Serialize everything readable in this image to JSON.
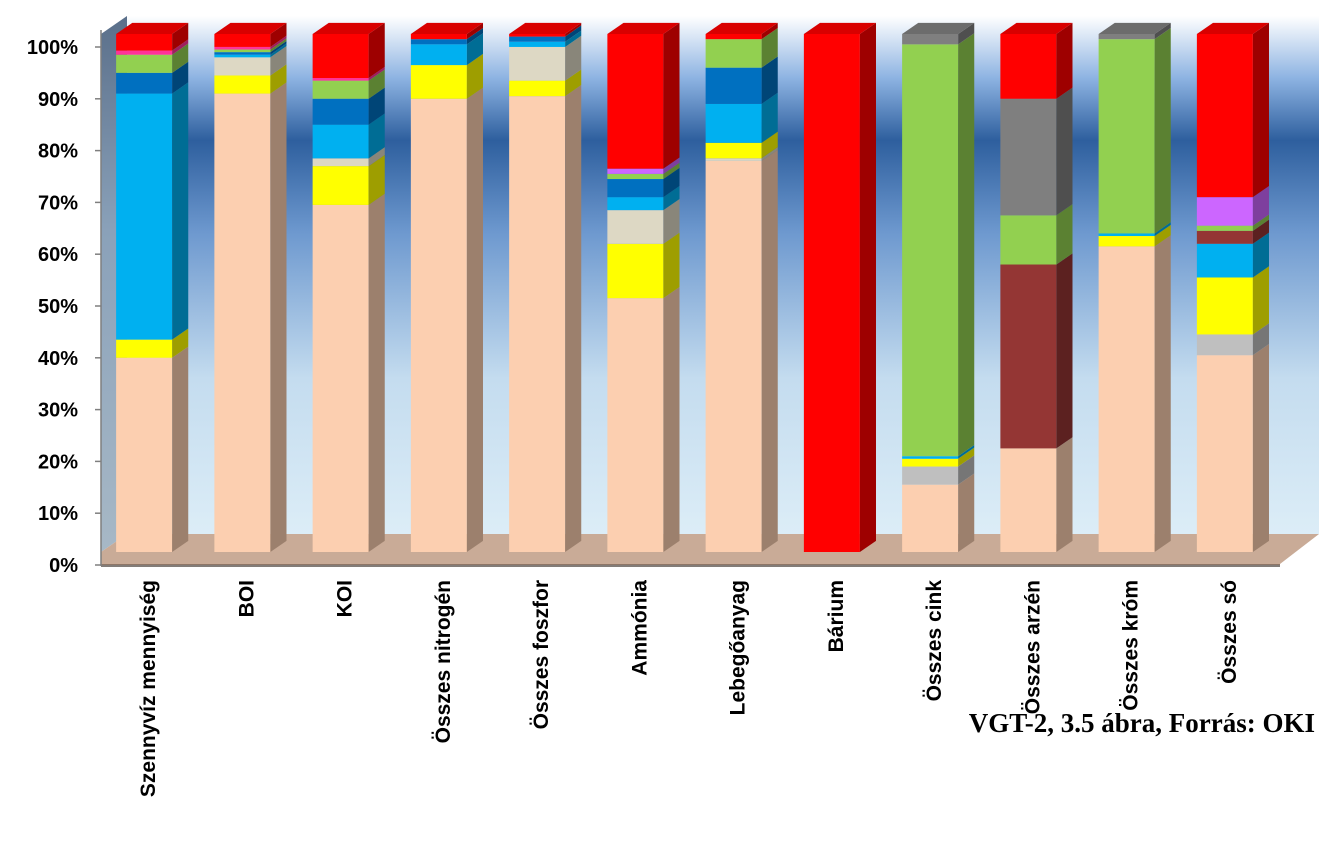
{
  "chart_data": {
    "type": "bar",
    "stacked": true,
    "normalized_percent": true,
    "three_d": true,
    "title": "",
    "xlabel": "",
    "ylabel": "",
    "ylim": [
      0,
      100
    ],
    "y_ticks": [
      "0%",
      "10%",
      "20%",
      "30%",
      "40%",
      "50%",
      "60%",
      "70%",
      "80%",
      "90%",
      "100%"
    ],
    "grid": false,
    "legend": "none",
    "categories": [
      "Szennyvíz mennyiség",
      "BOI",
      "KOI",
      "Összes nitrogén",
      "Összes foszfor",
      "Ammónia",
      "Lebegőanyag",
      "Bárium",
      "Összes cink",
      "Összes arzén",
      "Összes króm",
      "Összes só"
    ],
    "series_colors": [
      "#FCCFB0",
      "#BFBFBF",
      "#FFFF00",
      "#DDD8C4",
      "#00B0F0",
      "#0070C0",
      "#92D050",
      "#943634",
      "#7F7F7F",
      "#CC66FF",
      "#FF3399",
      "#FF0000"
    ],
    "segments": [
      [
        {
          "color": "#FCCFB0",
          "value": 37.5
        },
        {
          "color": "#FFFF00",
          "value": 3.5
        },
        {
          "color": "#00B0F0",
          "value": 47.5
        },
        {
          "color": "#0070C0",
          "value": 4
        },
        {
          "color": "#92D050",
          "value": 3.5
        },
        {
          "color": "#FF3399",
          "value": 0.8
        },
        {
          "color": "#FF0000",
          "value": 3.2
        }
      ],
      [
        {
          "color": "#FCCFB0",
          "value": 88.5
        },
        {
          "color": "#FFFF00",
          "value": 3.5
        },
        {
          "color": "#DDD8C4",
          "value": 3.5
        },
        {
          "color": "#00B0F0",
          "value": 0.5
        },
        {
          "color": "#0070C0",
          "value": 0.5
        },
        {
          "color": "#92D050",
          "value": 0.5
        },
        {
          "color": "#FF3399",
          "value": 0.5
        },
        {
          "color": "#FF0000",
          "value": 2.5
        }
      ],
      [
        {
          "color": "#FCCFB0",
          "value": 67
        },
        {
          "color": "#FFFF00",
          "value": 7.5
        },
        {
          "color": "#DDD8C4",
          "value": 1.5
        },
        {
          "color": "#00B0F0",
          "value": 6.5
        },
        {
          "color": "#0070C0",
          "value": 5
        },
        {
          "color": "#92D050",
          "value": 3.5
        },
        {
          "color": "#FF3399",
          "value": 0.5
        },
        {
          "color": "#FF0000",
          "value": 8.5
        }
      ],
      [
        {
          "color": "#FCCFB0",
          "value": 87.5
        },
        {
          "color": "#FFFF00",
          "value": 6.5
        },
        {
          "color": "#00B0F0",
          "value": 4
        },
        {
          "color": "#0070C0",
          "value": 1
        },
        {
          "color": "#FF0000",
          "value": 1
        }
      ],
      [
        {
          "color": "#FCCFB0",
          "value": 88
        },
        {
          "color": "#FFFF00",
          "value": 3
        },
        {
          "color": "#DDD8C4",
          "value": 6.5
        },
        {
          "color": "#00B0F0",
          "value": 1
        },
        {
          "color": "#0070C0",
          "value": 1
        },
        {
          "color": "#FF0000",
          "value": 0.5
        }
      ],
      [
        {
          "color": "#FCCFB0",
          "value": 49
        },
        {
          "color": "#FFFF00",
          "value": 10.5
        },
        {
          "color": "#DDD8C4",
          "value": 6.5
        },
        {
          "color": "#00B0F0",
          "value": 2.5
        },
        {
          "color": "#0070C0",
          "value": 3.5
        },
        {
          "color": "#92D050",
          "value": 1
        },
        {
          "color": "#CC66FF",
          "value": 1
        },
        {
          "color": "#FF0000",
          "value": 26
        }
      ],
      [
        {
          "color": "#FCCFB0",
          "value": 75.5
        },
        {
          "color": "#DDD8C4",
          "value": 0.5
        },
        {
          "color": "#FFFF00",
          "value": 3
        },
        {
          "color": "#00B0F0",
          "value": 7.5
        },
        {
          "color": "#0070C0",
          "value": 7
        },
        {
          "color": "#92D050",
          "value": 5.5
        },
        {
          "color": "#FF0000",
          "value": 1
        }
      ],
      [
        {
          "color": "#FF0000",
          "value": 100
        }
      ],
      [
        {
          "color": "#FCCFB0",
          "value": 13
        },
        {
          "color": "#BFBFBF",
          "value": 3.5
        },
        {
          "color": "#FFFF00",
          "value": 1.5
        },
        {
          "color": "#00B0F0",
          "value": 0.5
        },
        {
          "color": "#92D050",
          "value": 79.5
        },
        {
          "color": "#7F7F7F",
          "value": 2
        }
      ],
      [
        {
          "color": "#FCCFB0",
          "value": 20
        },
        {
          "color": "#943634",
          "value": 35.5
        },
        {
          "color": "#92D050",
          "value": 9.5
        },
        {
          "color": "#7F7F7F",
          "value": 22.5
        },
        {
          "color": "#FF0000",
          "value": 12.5
        }
      ],
      [
        {
          "color": "#FCCFB0",
          "value": 59
        },
        {
          "color": "#FFFF00",
          "value": 2
        },
        {
          "color": "#00B0F0",
          "value": 0.5
        },
        {
          "color": "#92D050",
          "value": 37.5
        },
        {
          "color": "#7F7F7F",
          "value": 1
        }
      ],
      [
        {
          "color": "#FCCFB0",
          "value": 38
        },
        {
          "color": "#BFBFBF",
          "value": 4
        },
        {
          "color": "#FFFF00",
          "value": 11
        },
        {
          "color": "#00B0F0",
          "value": 6.5
        },
        {
          "color": "#943634",
          "value": 2.5
        },
        {
          "color": "#92D050",
          "value": 1
        },
        {
          "color": "#CC66FF",
          "value": 5.5
        },
        {
          "color": "#FF0000",
          "value": 31.5
        }
      ]
    ]
  },
  "source_note": "VGT-2, 3.5 ábra,  Forrás: OKI"
}
